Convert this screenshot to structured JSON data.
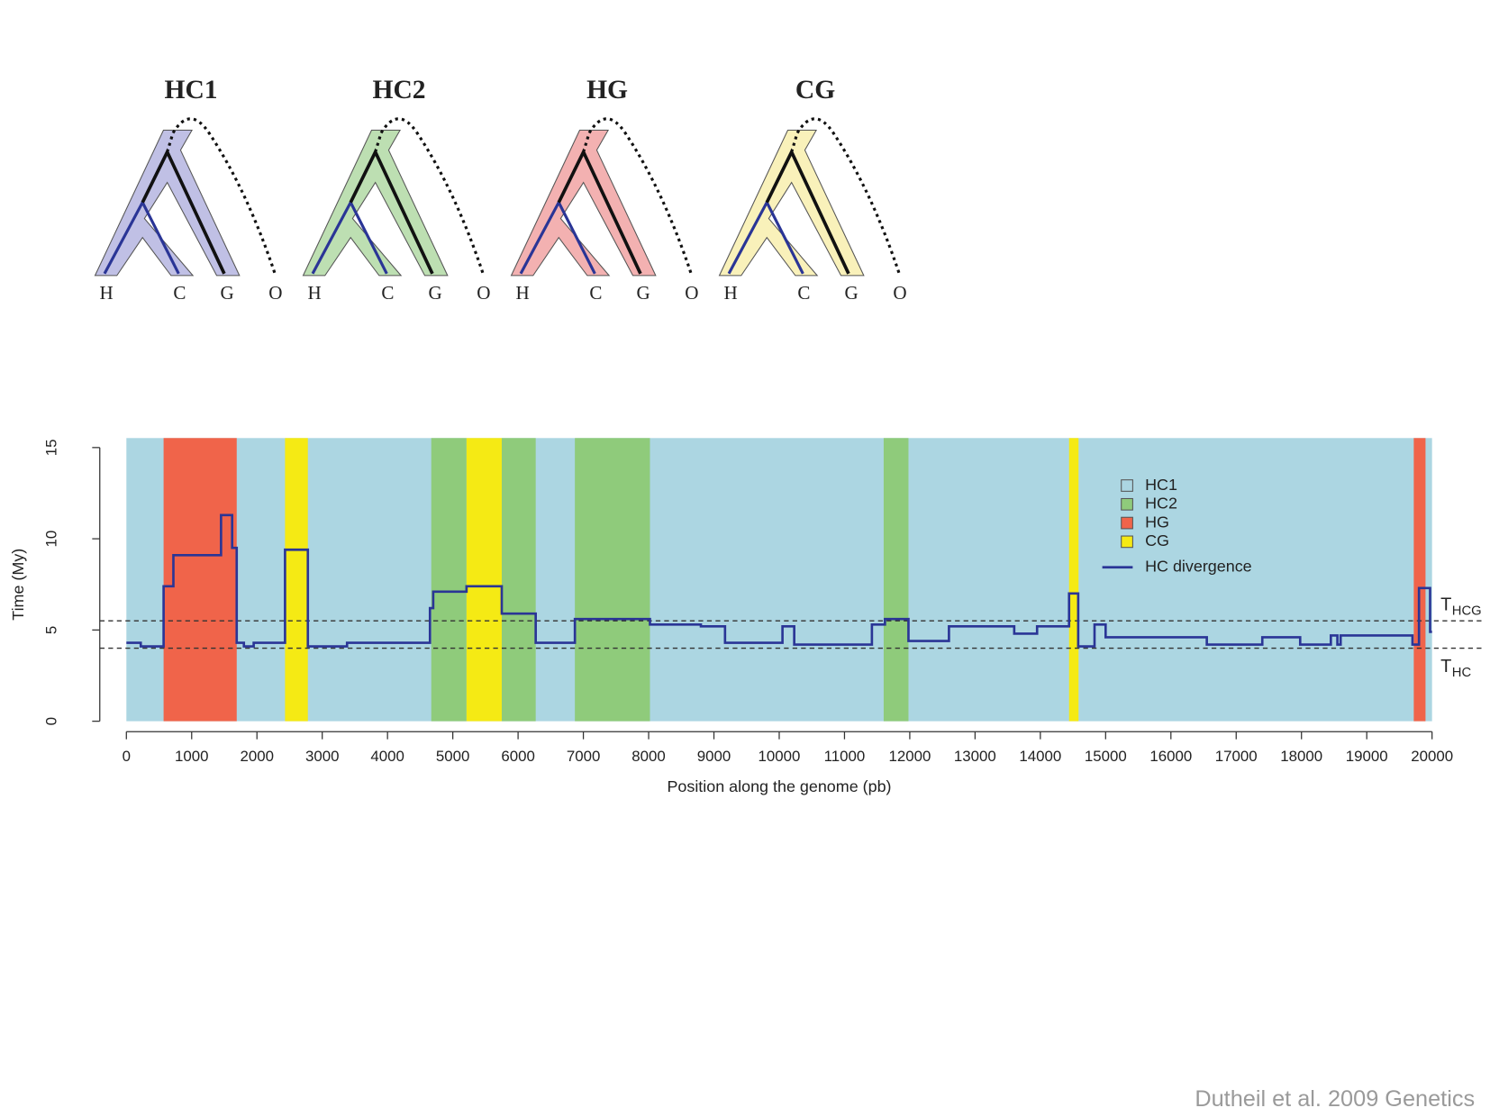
{
  "chart_data": {
    "type": "line",
    "xlabel": "Position along the genome (pb)",
    "ylabel": "Time (My)",
    "xlim": [
      0,
      20000
    ],
    "xticks": [
      0,
      1000,
      2000,
      3000,
      4000,
      5000,
      6000,
      7000,
      8000,
      9000,
      10000,
      11000,
      12000,
      13000,
      14000,
      15000,
      16000,
      17000,
      18000,
      19000,
      20000
    ],
    "ylim": [
      0,
      15
    ],
    "yticks": [
      0,
      5,
      10,
      15
    ],
    "background_topology": "HC1",
    "topologies": [
      {
        "name": "HC1",
        "color": "#acd6e2"
      },
      {
        "name": "HC2",
        "color": "#8fcb7b"
      },
      {
        "name": "HG",
        "color": "#f0644a"
      },
      {
        "name": "CG",
        "color": "#f5ea14"
      }
    ],
    "segments": [
      {
        "start": 570,
        "end": 1690,
        "topology": "HG"
      },
      {
        "start": 2430,
        "end": 2780,
        "topology": "CG"
      },
      {
        "start": 4670,
        "end": 5210,
        "topology": "HC2"
      },
      {
        "start": 5210,
        "end": 5750,
        "topology": "CG"
      },
      {
        "start": 5750,
        "end": 6270,
        "topology": "HC2"
      },
      {
        "start": 6870,
        "end": 8020,
        "topology": "HC2"
      },
      {
        "start": 11600,
        "end": 11980,
        "topology": "HC2"
      },
      {
        "start": 14440,
        "end": 14585,
        "topology": "CG"
      },
      {
        "start": 19720,
        "end": 19900,
        "topology": "HG"
      }
    ],
    "series": [
      {
        "name": "HC divergence",
        "color": "#2a3596",
        "x": [
          0,
          220,
          570,
          720,
          1450,
          1620,
          1690,
          1800,
          1950,
          2430,
          2780,
          3380,
          4650,
          4700,
          5210,
          5750,
          6270,
          6870,
          8020,
          8800,
          9170,
          10050,
          10230,
          11420,
          11620,
          11980,
          12600,
          13600,
          13950,
          14440,
          14580,
          14830,
          15000,
          16550,
          17400,
          17980,
          18450,
          18550,
          18600,
          19700,
          19800,
          19970,
          20000
        ],
        "values": [
          4.3,
          4.1,
          7.4,
          9.1,
          11.3,
          9.5,
          4.3,
          4.1,
          4.3,
          9.4,
          4.1,
          4.3,
          6.2,
          7.1,
          7.4,
          5.9,
          4.3,
          5.6,
          5.3,
          5.2,
          4.3,
          5.2,
          4.2,
          5.3,
          5.6,
          4.4,
          5.2,
          4.8,
          5.2,
          7.0,
          4.1,
          5.3,
          4.6,
          4.2,
          4.6,
          4.2,
          4.7,
          4.2,
          4.7,
          4.2,
          7.3,
          4.9,
          4.9
        ]
      }
    ],
    "annotations": [
      {
        "value": 5.5,
        "label": "T",
        "sub": "HCG"
      },
      {
        "value": 4.0,
        "label": "T",
        "sub": "HC"
      }
    ]
  },
  "trees": [
    {
      "title": "HC1",
      "color": "#b9b9e2",
      "leaves": [
        "H",
        "C",
        "G",
        "O"
      ]
    },
    {
      "title": "HC2",
      "color": "#b6dcaa",
      "leaves": [
        "H",
        "C",
        "G",
        "O"
      ]
    },
    {
      "title": "HG",
      "color": "#f2a8a8",
      "leaves": [
        "H",
        "C",
        "G",
        "O"
      ]
    },
    {
      "title": "CG",
      "color": "#f8f0b2",
      "leaves": [
        "H",
        "C",
        "G",
        "O"
      ]
    }
  ],
  "footer": "Dutheil et al. 2009 Genetics"
}
